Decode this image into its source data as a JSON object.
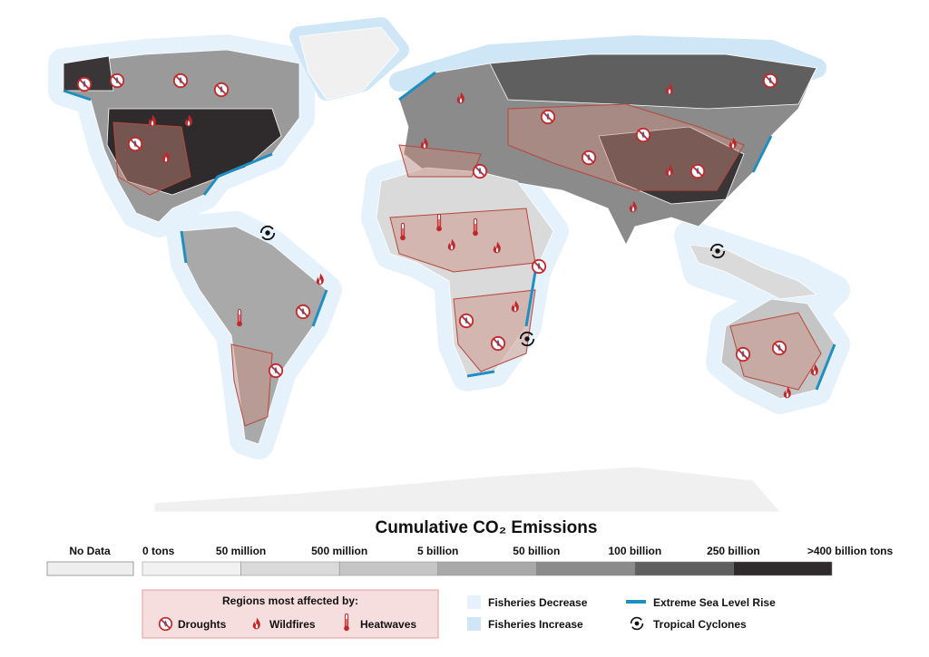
{
  "title": "Cumulative CO₂ Emissions",
  "scale": {
    "no_data_label": "No Data",
    "no_data_color": "#eeeeee",
    "labels": [
      "0 tons",
      "50 million",
      "500 million",
      "5 billion",
      "50 billion",
      "100 billion",
      "250 billion",
      ">400 billion tons"
    ],
    "colors": [
      "#f1f1f1",
      "#dadada",
      "#c5c5c5",
      "#a9a9a9",
      "#8b8b8b",
      "#5f5f5f",
      "#2f2b2c"
    ]
  },
  "regions_legend": {
    "title": "Regions most affected by:",
    "items": [
      "Droughts",
      "Wildfires",
      "Heatwaves"
    ]
  },
  "ocean_legend": {
    "items": [
      "Fisheries Decrease",
      "Fisheries Increase",
      "Extreme Sea Level Rise",
      "Tropical Cyclones"
    ]
  }
}
